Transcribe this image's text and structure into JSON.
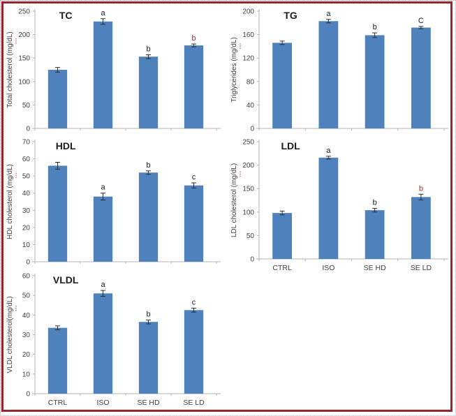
{
  "colors": {
    "bar": "#4f81bd",
    "axis": "#b3b3b3",
    "tick_text": "#3d3d3d",
    "title_text": "#1a1a1a",
    "error_bar": "#2b2b2b",
    "sig_black": "#1a1a1a",
    "sig_red": "#a02622",
    "frame": "#99262b",
    "spellcheck": "#cc2b2b"
  },
  "chart_data": [
    {
      "id": "tc",
      "type": "bar",
      "title": "TC",
      "ylabel": "Total cholesterol (mg/dL)",
      "categories": [
        "CTRL",
        "ISO",
        "SE HD",
        "SE LD"
      ],
      "values": [
        125,
        228,
        153,
        177
      ],
      "errors": [
        5,
        6,
        4,
        3
      ],
      "sig_letters": [
        "",
        "a",
        "b",
        "b"
      ],
      "sig_colors": [
        "",
        "#1a1a1a",
        "#1a1a1a",
        "#a02622"
      ],
      "ylim": [
        0,
        250
      ],
      "ytick_step": 50,
      "show_x_labels": false,
      "grid": false,
      "legend": false
    },
    {
      "id": "tg",
      "type": "bar",
      "title": "TG",
      "ylabel": "Triglycerides (mg/dL)",
      "categories": [
        "CTRL",
        "ISO",
        "SE HD",
        "SE LD"
      ],
      "values": [
        146,
        183,
        159,
        172
      ],
      "errors": [
        3,
        3,
        4,
        2
      ],
      "sig_letters": [
        "",
        "a",
        "b",
        "C"
      ],
      "sig_colors": [
        "",
        "#1a1a1a",
        "#1a1a1a",
        "#1a1a1a"
      ],
      "ylim": [
        0,
        200
      ],
      "ytick_step": 40,
      "show_x_labels": false,
      "grid": false,
      "legend": false
    },
    {
      "id": "hdl",
      "type": "bar",
      "title": "HDL",
      "ylabel": "HDL cholesterol (mg/dL)",
      "categories": [
        "CTRL",
        "ISO",
        "SE HD",
        "SE LD"
      ],
      "values": [
        56,
        38,
        52,
        44.5
      ],
      "errors": [
        2,
        2,
        1,
        1.5
      ],
      "sig_letters": [
        "",
        "a",
        "b",
        "c"
      ],
      "sig_colors": [
        "",
        "#1a1a1a",
        "#1a1a1a",
        "#1a1a1a"
      ],
      "ylim": [
        0,
        70
      ],
      "ytick_step": 10,
      "show_x_labels": false,
      "grid": false,
      "legend": false
    },
    {
      "id": "ldl",
      "type": "bar",
      "title": "LDL",
      "ylabel": "LDL cholesterol (mg/dL)",
      "categories": [
        "CTRL",
        "ISO",
        "SE HD",
        "SE LD"
      ],
      "values": [
        98,
        216,
        104,
        132
      ],
      "errors": [
        4,
        3,
        4,
        6
      ],
      "sig_letters": [
        "",
        "a",
        "b",
        "b"
      ],
      "sig_colors": [
        "",
        "#1a1a1a",
        "#1a1a1a",
        "#a02622"
      ],
      "ylim": [
        0,
        250
      ],
      "ytick_step": 50,
      "show_x_labels": true,
      "grid": false,
      "legend": false
    },
    {
      "id": "vldl",
      "type": "bar",
      "title": "VLDL",
      "ylabel": "VLDL cholesterol(mg/dL)",
      "categories": [
        "CTRL",
        "ISO",
        "SE HD",
        "SE LD"
      ],
      "values": [
        33.5,
        51,
        36.5,
        42.5
      ],
      "errors": [
        1,
        1.5,
        1,
        1
      ],
      "sig_letters": [
        "",
        "a",
        "b",
        "c"
      ],
      "sig_colors": [
        "",
        "#1a1a1a",
        "#1a1a1a",
        "#1a1a1a"
      ],
      "ylim": [
        0,
        60
      ],
      "ytick_step": 10,
      "show_x_labels": true,
      "grid": false,
      "legend": false
    }
  ]
}
